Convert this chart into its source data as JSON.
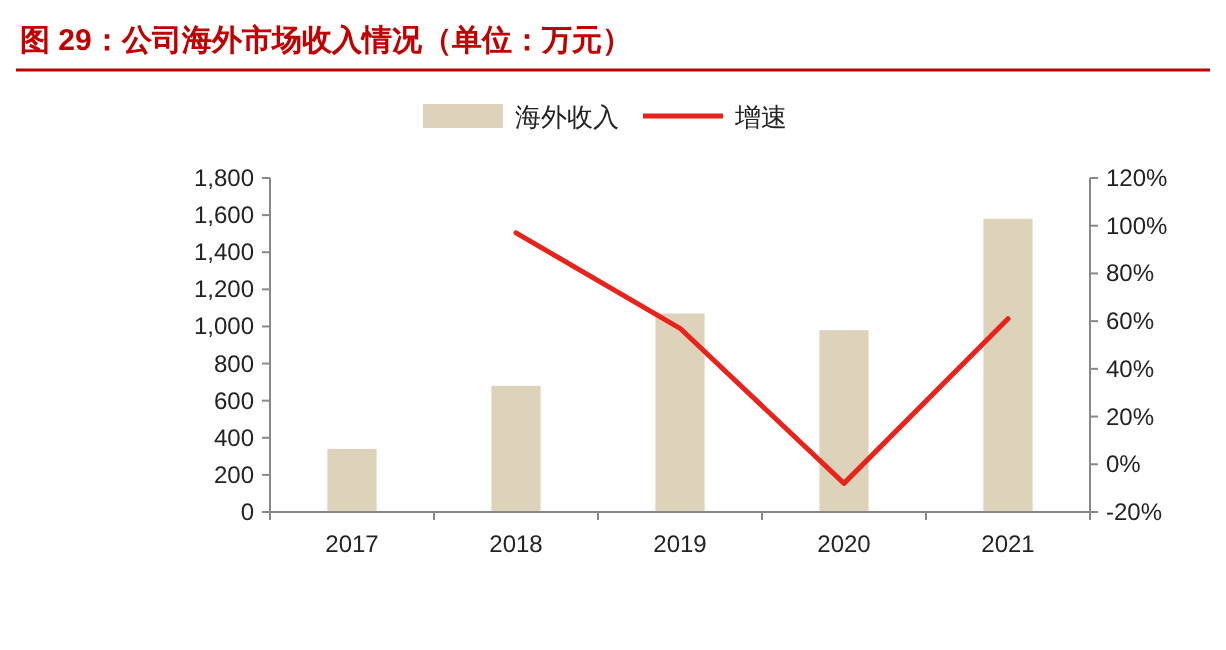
{
  "chart_data": {
    "type": "bar",
    "title": "图 29：公司海外市场收入情况（单位：万元）",
    "categories": [
      "2017",
      "2018",
      "2019",
      "2020",
      "2021"
    ],
    "series": [
      {
        "name": "海外收入",
        "color": "#ddd3bb",
        "values": [
          340,
          680,
          1070,
          980,
          1580
        ]
      },
      {
        "name": "增速",
        "type": "line",
        "axis": "y2",
        "color": "#e8231c",
        "values": [
          null,
          97,
          57,
          -8,
          61
        ]
      }
    ],
    "ylim": [
      0,
      1800
    ],
    "yticks": [
      {
        "value": 0,
        "label": "0"
      },
      {
        "value": 200,
        "label": "200"
      },
      {
        "value": 400,
        "label": "400"
      },
      {
        "value": 600,
        "label": "600"
      },
      {
        "value": 800,
        "label": "800"
      },
      {
        "value": 1000,
        "label": "1,000"
      },
      {
        "value": 1200,
        "label": "1,200"
      },
      {
        "value": 1400,
        "label": "1,400"
      },
      {
        "value": 1600,
        "label": "1,600"
      },
      {
        "value": 1800,
        "label": "1,800"
      }
    ],
    "y2lim": [
      -20,
      120
    ],
    "y2ticks": [
      {
        "value": -20,
        "label": "-20%"
      },
      {
        "value": 0,
        "label": "0%"
      },
      {
        "value": 20,
        "label": "20%"
      },
      {
        "value": 40,
        "label": "40%"
      },
      {
        "value": 60,
        "label": "60%"
      },
      {
        "value": 80,
        "label": "80%"
      },
      {
        "value": 100,
        "label": "100%"
      },
      {
        "value": 120,
        "label": "120%"
      }
    ],
    "legend": "top",
    "grid": false,
    "marker": "none",
    "line_style": "solid"
  }
}
